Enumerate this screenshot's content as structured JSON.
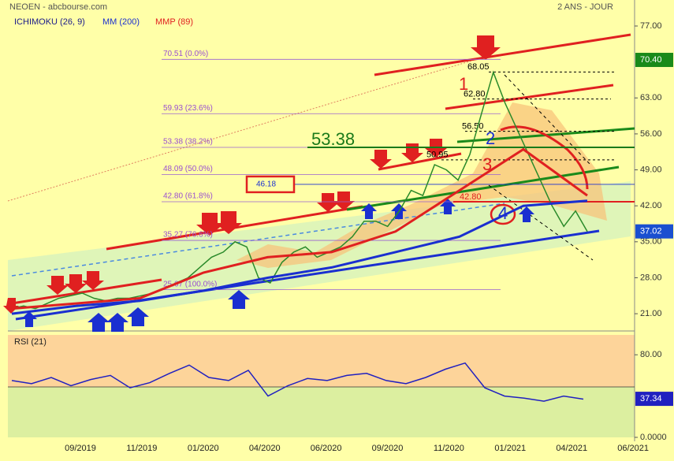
{
  "chart_data": {
    "type": "line",
    "title": "NEOEN - abcbourse.com",
    "subtitle": "2 ANS - JOUR",
    "ichimoku_label": "ICHIMOKU (26, 9)",
    "price": {
      "color": "#2a8a2a",
      "values": [
        22,
        22.5,
        22,
        23,
        24,
        24.5,
        25,
        24,
        23.5,
        24,
        24,
        24.5,
        25,
        26,
        27,
        28,
        30,
        32,
        33,
        35,
        34,
        28,
        27,
        31,
        33,
        34,
        32,
        33,
        34,
        36,
        39,
        39,
        38,
        41,
        45,
        44,
        50,
        49,
        47,
        52,
        60,
        68,
        62,
        57,
        52,
        47,
        42,
        38,
        41,
        37
      ]
    },
    "series": [
      {
        "name": "MM (200)",
        "color": "#1a2fd0",
        "values": [
          21,
          22.5,
          23.5,
          25.5,
          28,
          30,
          33,
          36,
          42,
          43
        ]
      },
      {
        "name": "MMP (89)",
        "color": "#e02020",
        "values": [
          22,
          23,
          24,
          29,
          32,
          33,
          37,
          45,
          53,
          44
        ]
      }
    ],
    "ylim": [
      17.64,
      82.06
    ],
    "yticks": [
      {
        "value": 77,
        "label": "77.00"
      },
      {
        "value": 63,
        "label": "63.00"
      },
      {
        "value": 56,
        "label": "56.00"
      },
      {
        "value": 49,
        "label": "49.00"
      },
      {
        "value": 42,
        "label": "42.00"
      },
      {
        "value": 35,
        "label": "35.00"
      },
      {
        "value": 28,
        "label": "28.00"
      },
      {
        "value": 21,
        "label": "21.00"
      }
    ],
    "x_labels": [
      "09/2019",
      "11/2019",
      "01/2020",
      "04/2020",
      "06/2020",
      "09/2020",
      "11/2020",
      "01/2021",
      "04/2021",
      "06/2021"
    ],
    "fibonacci": [
      {
        "value": 70.51,
        "label": "70.51 (0.0%)"
      },
      {
        "value": 59.93,
        "label": "59.93 (23.6%)"
      },
      {
        "value": 53.38,
        "label": "53.38 (38.2%)"
      },
      {
        "value": 48.09,
        "label": "48.09 (50.0%)"
      },
      {
        "value": 42.8,
        "label": "42.80 (61.8%)"
      },
      {
        "value": 35.27,
        "label": "35.27 (76.6%)"
      },
      {
        "value": 25.67,
        "label": "25.67 (100.0%)"
      }
    ],
    "levels": [
      {
        "value": 68.05,
        "label": "68.05"
      },
      {
        "value": 62.8,
        "label": "62.80"
      },
      {
        "value": 56.5,
        "label": "56.50"
      },
      {
        "value": 50.95,
        "label": "50.95"
      }
    ],
    "support": {
      "value": 42.8,
      "label": "42.80"
    },
    "green_level": {
      "value": 53.38,
      "label": "53.38"
    },
    "box_level": {
      "value": 46.18,
      "label": "46.18"
    },
    "wave_labels": [
      "1",
      "2",
      "3",
      "4"
    ],
    "last_tags": [
      {
        "value": 70.4,
        "label": "70.40",
        "color": "#1a8a1a"
      },
      {
        "value": 37.02,
        "label": "37.02",
        "color": "#1a4fd0"
      }
    ],
    "rsi": {
      "name": "RSI (21)",
      "color": "#2020c0",
      "ylim": [
        0,
        100
      ],
      "yticks": [
        {
          "value": 80,
          "label": "80.00"
        },
        {
          "value": 0,
          "label": "0.0000"
        }
      ],
      "values": [
        55,
        52,
        58,
        50,
        56,
        60,
        48,
        53,
        62,
        70,
        58,
        55,
        65,
        40,
        50,
        57,
        55,
        60,
        62,
        55,
        52,
        58,
        66,
        72,
        48,
        40,
        38,
        35,
        40,
        37
      ],
      "last": {
        "value": 37.34,
        "label": "37.34"
      }
    }
  }
}
